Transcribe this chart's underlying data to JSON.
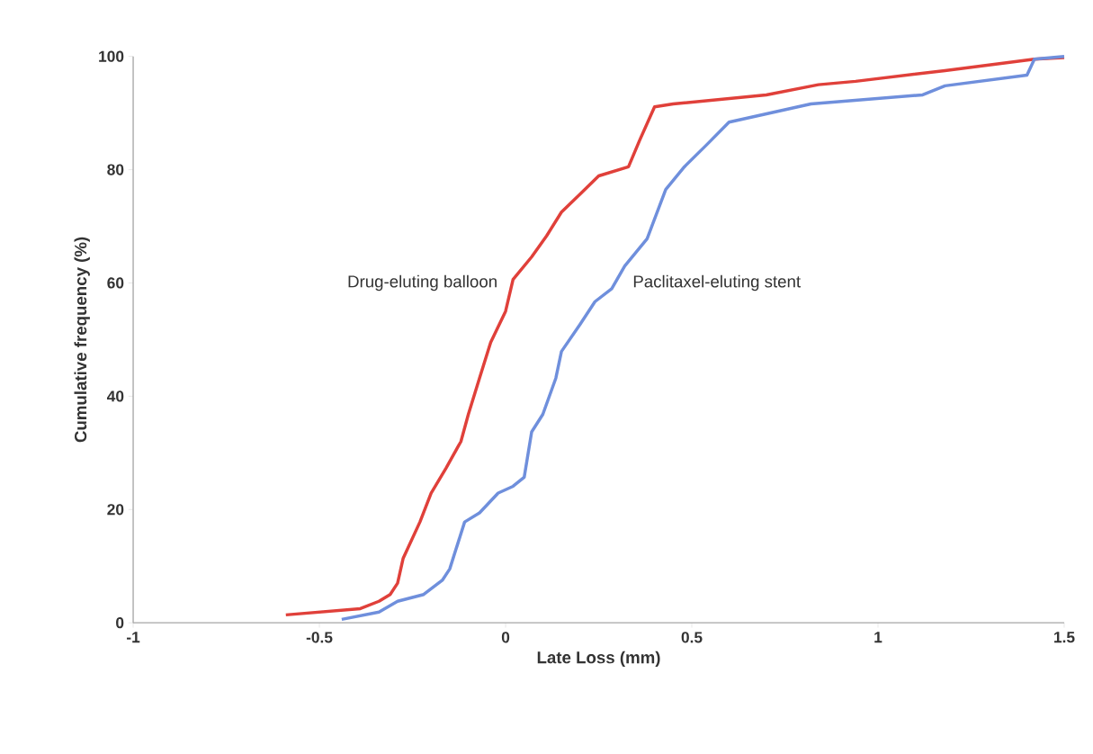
{
  "chart_data": {
    "type": "line",
    "xlabel": "Late Loss (mm)",
    "ylabel": "Cumulative frequency (%)",
    "xlim": [
      -1,
      1.5
    ],
    "ylim": [
      0,
      100
    ],
    "xticks": [
      -1,
      -0.5,
      0,
      0.5,
      1,
      1.5
    ],
    "yticks": [
      0,
      20,
      40,
      60,
      80,
      100
    ],
    "grid": false,
    "legend": false,
    "marker": "none",
    "line_style": "solid",
    "series": [
      {
        "name": "Drug-eluting balloon",
        "color": "#e0403a",
        "x": [
          -0.59,
          -0.39,
          -0.34,
          -0.31,
          -0.29,
          -0.275,
          -0.23,
          -0.2,
          -0.16,
          -0.12,
          -0.1,
          -0.07,
          -0.04,
          0,
          0.02,
          0.07,
          0.11,
          0.15,
          0.2,
          0.25,
          0.33,
          0.36,
          0.4,
          0.45,
          0.7,
          0.84,
          0.94,
          1.18,
          1.42,
          1.5
        ],
        "values": [
          1.4,
          2.5,
          3.8,
          5,
          7,
          11.4,
          17.8,
          22.9,
          27.3,
          32,
          36.8,
          43.2,
          49.5,
          55,
          60.6,
          64.6,
          68.3,
          72.5,
          75.7,
          78.9,
          80.5,
          85.2,
          91.1,
          91.6,
          93.2,
          95,
          95.6,
          97.5,
          99.5,
          99.8
        ]
      },
      {
        "name": "Paclitaxel-eluting stent",
        "color": "#6f8fdc",
        "x": [
          -0.44,
          -0.34,
          -0.29,
          -0.22,
          -0.17,
          -0.15,
          -0.11,
          -0.07,
          -0.02,
          0.02,
          0.05,
          0.07,
          0.1,
          0.135,
          0.15,
          0.2,
          0.24,
          0.285,
          0.32,
          0.38,
          0.43,
          0.48,
          0.54,
          0.6,
          0.82,
          1.12,
          1.18,
          1.4,
          1.42,
          1.5
        ],
        "values": [
          0.6,
          1.9,
          3.8,
          5,
          7.5,
          9.5,
          17.8,
          19.4,
          22.9,
          24.1,
          25.7,
          33.7,
          36.8,
          43.2,
          47.9,
          52.7,
          56.7,
          59,
          63,
          67.8,
          76.5,
          80.5,
          84.4,
          88.4,
          91.6,
          93.2,
          94.8,
          96.7,
          99.5,
          100
        ]
      }
    ]
  }
}
